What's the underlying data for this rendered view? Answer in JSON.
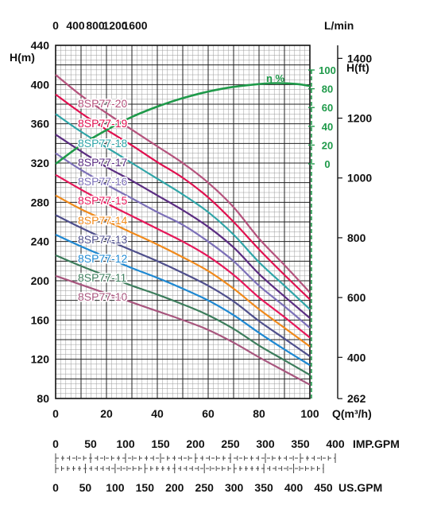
{
  "chart_data": {
    "type": "line",
    "title": "",
    "axes": {
      "flow_m3h": {
        "label": "Q(m³/h)",
        "range": [
          0,
          100
        ],
        "ticks": [
          "0",
          "20",
          "40",
          "60",
          "80",
          "100"
        ]
      },
      "flow_lmin": {
        "label": "L/min",
        "ticks": [
          "0",
          "400",
          "800",
          "1200",
          "1600"
        ],
        "values": [
          0,
          400,
          800,
          1200,
          1600
        ]
      },
      "head_m": {
        "label": "H(m)",
        "range": [
          80,
          440
        ],
        "ticks": [
          "80",
          "120",
          "160",
          "200",
          "240",
          "280",
          "320",
          "360",
          "400",
          "440"
        ]
      },
      "head_ft": {
        "label": "H(ft)",
        "ticks": [
          "262",
          "400",
          "600",
          "800",
          "1000",
          "1200",
          "1400"
        ],
        "values": [
          262,
          400,
          600,
          800,
          1000,
          1200,
          1400
        ]
      },
      "efficiency": {
        "label": "η %",
        "ticks": [
          "0",
          "20",
          "40",
          "60",
          "80",
          "100"
        ],
        "values": [
          0,
          20,
          40,
          60,
          80,
          100
        ],
        "color": "#1f9a4a"
      },
      "imp_gpm": {
        "label": "IMP.GPM",
        "ticks": [
          "0",
          "50",
          "100",
          "150",
          "200",
          "250",
          "300",
          "350",
          "400"
        ],
        "values": [
          0,
          50,
          100,
          150,
          200,
          250,
          300,
          350,
          400
        ]
      },
      "us_gpm": {
        "label": "US.GPM",
        "ticks": [
          "0",
          "50",
          "100",
          "150",
          "200",
          "250",
          "300",
          "350",
          "400",
          "450"
        ],
        "values": [
          0,
          50,
          100,
          150,
          200,
          250,
          300,
          350,
          400,
          450
        ]
      }
    },
    "grid": true,
    "x": [
      0,
      10,
      20,
      30,
      40,
      50,
      60,
      70,
      80,
      90,
      100
    ],
    "series": [
      {
        "name": "8SP77-20",
        "color": "#b5537d",
        "values": [
          410,
          389,
          371,
          354,
          337,
          320,
          300,
          275,
          243,
          216,
          188
        ]
      },
      {
        "name": "8SP77-19",
        "color": "#e0104f",
        "values": [
          390,
          371,
          354,
          338,
          321,
          305,
          285,
          260,
          232,
          206,
          181
        ]
      },
      {
        "name": "8SP77-18",
        "color": "#2fa5a8",
        "values": [
          370,
          352,
          336,
          320,
          304,
          288,
          270,
          247,
          219,
          195,
          171
        ]
      },
      {
        "name": "8SP77-17",
        "color": "#5b2d82",
        "values": [
          349,
          332,
          316,
          302,
          287,
          272,
          255,
          234,
          207,
          184,
          162
        ]
      },
      {
        "name": "8SP77-16",
        "color": "#7c70b8",
        "values": [
          330,
          313,
          298,
          284,
          270,
          257,
          240,
          220,
          195,
          174,
          152
        ]
      },
      {
        "name": "8SP77-15",
        "color": "#e6185a",
        "values": [
          308,
          293,
          279,
          266,
          253,
          240,
          225,
          206,
          183,
          163,
          142
        ]
      },
      {
        "name": "8SP77-14",
        "color": "#f08a1c",
        "values": [
          287,
          273,
          261,
          249,
          237,
          224,
          210,
          192,
          171,
          152,
          133
        ]
      },
      {
        "name": "8SP77-13",
        "color": "#4f4f8c",
        "values": [
          267,
          254,
          242,
          231,
          220,
          208,
          195,
          179,
          159,
          141,
          123
        ]
      },
      {
        "name": "8SP77-12",
        "color": "#1e88d2",
        "values": [
          247,
          235,
          224,
          213,
          203,
          192,
          180,
          165,
          147,
          130,
          114
        ]
      },
      {
        "name": "8SP77-11",
        "color": "#3c7d5c",
        "values": [
          226,
          215,
          205,
          195,
          186,
          176,
          165,
          151,
          134,
          119,
          104
        ]
      },
      {
        "name": "8SP77-10",
        "color": "#a8567e",
        "values": [
          205,
          196,
          187,
          178,
          169,
          160,
          150,
          137,
          122,
          108,
          94
        ]
      }
    ],
    "efficiency_curve": {
      "name": "η %",
      "color": "#1f9a4a",
      "x": [
        0,
        10,
        20,
        30,
        40,
        50,
        60,
        70,
        80,
        87,
        95,
        100
      ],
      "values": [
        0,
        20,
        36,
        50,
        61,
        70,
        77,
        82,
        85,
        86,
        85,
        83
      ]
    }
  }
}
